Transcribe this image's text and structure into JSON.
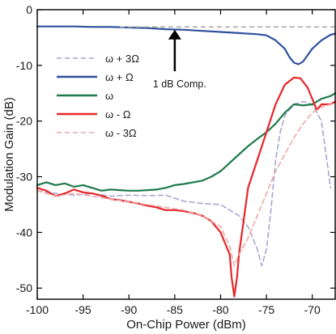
{
  "chart_data": {
    "type": "line",
    "title": "",
    "xlabel": "On-Chip Power (dBm)",
    "ylabel": "Modulation Gain (dB)",
    "xlim": [
      -100,
      -67.5
    ],
    "ylim": [
      -52,
      0
    ],
    "xticks": [
      -100,
      -95,
      -90,
      -85,
      -80,
      -75,
      -70
    ],
    "yticks": [
      0,
      -10,
      -20,
      -30,
      -40,
      -50
    ],
    "legend_position": "left",
    "annotation": {
      "text": "1 dB Comp.",
      "x": -85,
      "y_tip": -3.6,
      "y_tail": -9.6
    },
    "reference_line": {
      "y": -3.1,
      "color": "#aaaaaa"
    },
    "series": [
      {
        "name": "ω + 3Ω",
        "color": "#a8a7d2",
        "dashed": true,
        "points": [
          [
            -100,
            -32.5
          ],
          [
            -98,
            -33
          ],
          [
            -96,
            -33.3
          ],
          [
            -94,
            -33
          ],
          [
            -92,
            -33.5
          ],
          [
            -90,
            -33.3
          ],
          [
            -88,
            -33.4
          ],
          [
            -86,
            -33.3
          ],
          [
            -84,
            -34.4
          ],
          [
            -82,
            -34.8
          ],
          [
            -80,
            -35
          ],
          [
            -79,
            -36
          ],
          [
            -78,
            -37
          ],
          [
            -77,
            -39
          ],
          [
            -76,
            -43
          ],
          [
            -75.5,
            -46
          ],
          [
            -75,
            -43
          ],
          [
            -74.5,
            -36
          ],
          [
            -74,
            -27
          ],
          [
            -73.5,
            -22
          ],
          [
            -73,
            -19
          ],
          [
            -72,
            -17
          ],
          [
            -71,
            -16.5
          ],
          [
            -70,
            -17
          ],
          [
            -69,
            -20
          ],
          [
            -68.5,
            -26
          ],
          [
            -68,
            -32
          ]
        ]
      },
      {
        "name": "ω + Ω",
        "color": "#2f4f9e",
        "dashed": false,
        "points": [
          [
            -100,
            -3
          ],
          [
            -98,
            -3
          ],
          [
            -96,
            -3
          ],
          [
            -94,
            -3.1
          ],
          [
            -92,
            -3.1
          ],
          [
            -90,
            -3.2
          ],
          [
            -88,
            -3.3
          ],
          [
            -86,
            -3.5
          ],
          [
            -84,
            -3.6
          ],
          [
            -82,
            -3.8
          ],
          [
            -80,
            -4
          ],
          [
            -78,
            -4.2
          ],
          [
            -76,
            -4.4
          ],
          [
            -75,
            -4.6
          ],
          [
            -74,
            -5.5
          ],
          [
            -73,
            -7
          ],
          [
            -72.5,
            -8.5
          ],
          [
            -72,
            -9.5
          ],
          [
            -71.5,
            -9.8
          ],
          [
            -71,
            -9.3
          ],
          [
            -70,
            -7
          ],
          [
            -69,
            -5.5
          ],
          [
            -68,
            -4.5
          ],
          [
            -67.5,
            -4.3
          ]
        ]
      },
      {
        "name": "ω",
        "color": "#1f7a4a",
        "dashed": false,
        "points": [
          [
            -100,
            -31.5
          ],
          [
            -99,
            -31
          ],
          [
            -98,
            -31.5
          ],
          [
            -97,
            -31.2
          ],
          [
            -96,
            -31.8
          ],
          [
            -95,
            -31.5
          ],
          [
            -94,
            -32
          ],
          [
            -93,
            -32.5
          ],
          [
            -92,
            -32.3
          ],
          [
            -91,
            -32.4
          ],
          [
            -90,
            -32.5
          ],
          [
            -89,
            -32.5
          ],
          [
            -88,
            -32.4
          ],
          [
            -87,
            -32.3
          ],
          [
            -86,
            -32
          ],
          [
            -85,
            -31.5
          ],
          [
            -84,
            -31.3
          ],
          [
            -83,
            -31
          ],
          [
            -82,
            -30.7
          ],
          [
            -81,
            -30
          ],
          [
            -80,
            -29
          ],
          [
            -79,
            -27.5
          ],
          [
            -78,
            -26
          ],
          [
            -77,
            -24.5
          ],
          [
            -76,
            -23.2
          ],
          [
            -75,
            -22
          ],
          [
            -74,
            -20.5
          ],
          [
            -73,
            -18.5
          ],
          [
            -72,
            -17
          ],
          [
            -71,
            -17.2
          ],
          [
            -70,
            -17
          ],
          [
            -69,
            -16
          ],
          [
            -68,
            -15.5
          ],
          [
            -67.5,
            -15
          ]
        ]
      },
      {
        "name": "ω - Ω",
        "color": "#e8262a",
        "dashed": false,
        "points": [
          [
            -100,
            -32
          ],
          [
            -99,
            -32.5
          ],
          [
            -98,
            -33.5
          ],
          [
            -97,
            -33
          ],
          [
            -96,
            -32.3
          ],
          [
            -95,
            -32.8
          ],
          [
            -94,
            -33
          ],
          [
            -93,
            -33.4
          ],
          [
            -92,
            -34
          ],
          [
            -91,
            -34.2
          ],
          [
            -90,
            -34.5
          ],
          [
            -89,
            -34.8
          ],
          [
            -88,
            -35.2
          ],
          [
            -87,
            -35.5
          ],
          [
            -86,
            -36
          ],
          [
            -85,
            -36
          ],
          [
            -84,
            -36.2
          ],
          [
            -83,
            -36.5
          ],
          [
            -82,
            -37
          ],
          [
            -81,
            -38
          ],
          [
            -80,
            -40
          ],
          [
            -79,
            -44
          ],
          [
            -78.8,
            -48
          ],
          [
            -78.5,
            -51.5
          ],
          [
            -78.2,
            -48
          ],
          [
            -78,
            -44
          ],
          [
            -77.5,
            -38
          ],
          [
            -77,
            -32
          ],
          [
            -76,
            -27
          ],
          [
            -75,
            -22
          ],
          [
            -74,
            -17
          ],
          [
            -73,
            -13.5
          ],
          [
            -72,
            -12.2
          ],
          [
            -71.3,
            -12.3
          ],
          [
            -70.5,
            -14
          ],
          [
            -70,
            -16
          ],
          [
            -69.5,
            -18
          ],
          [
            -69,
            -17
          ],
          [
            -68,
            -17
          ],
          [
            -67.5,
            -16.5
          ]
        ]
      },
      {
        "name": "ω - 3Ω",
        "color": "#f0a8a8",
        "dashed": true,
        "points": [
          [
            -100,
            -32.5
          ],
          [
            -98,
            -33.5
          ],
          [
            -96,
            -33
          ],
          [
            -94,
            -33.5
          ],
          [
            -92,
            -34
          ],
          [
            -90,
            -34.5
          ],
          [
            -88,
            -35
          ],
          [
            -86,
            -35.5
          ],
          [
            -84,
            -36
          ],
          [
            -82,
            -37
          ],
          [
            -80,
            -39
          ],
          [
            -79,
            -42.5
          ],
          [
            -78.5,
            -46
          ],
          [
            -78,
            -44
          ],
          [
            -77,
            -41
          ],
          [
            -76,
            -37
          ],
          [
            -75,
            -33
          ],
          [
            -74,
            -29
          ],
          [
            -73,
            -26
          ],
          [
            -72,
            -23
          ],
          [
            -71,
            -20.5
          ],
          [
            -70,
            -18.5
          ],
          [
            -69,
            -17.5
          ],
          [
            -68,
            -17
          ],
          [
            -67.5,
            -16.8
          ]
        ]
      }
    ]
  }
}
